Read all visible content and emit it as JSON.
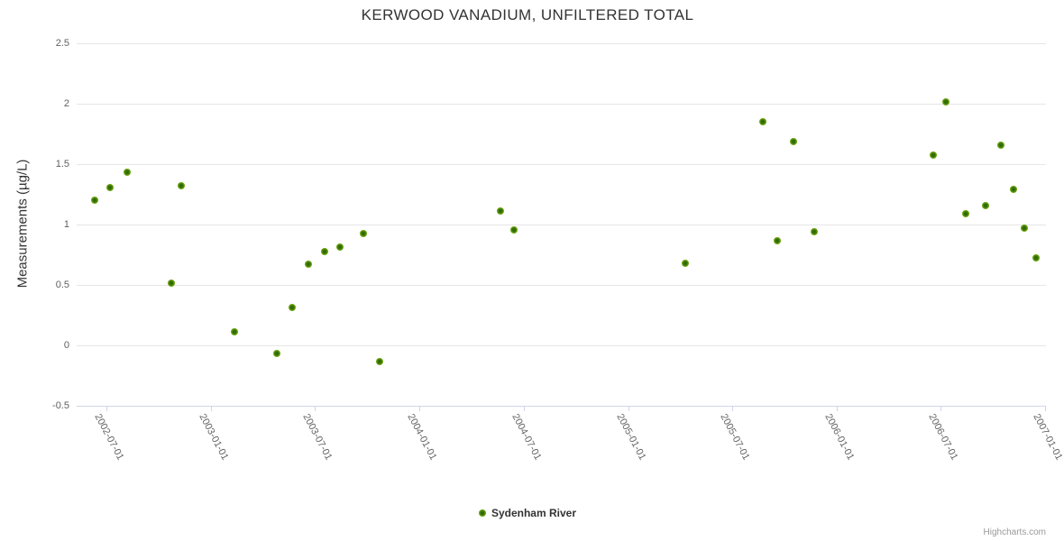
{
  "chart": {
    "credits": "Highcharts.com"
  },
  "chart_data": {
    "type": "scatter",
    "title": "KERWOOD VANADIUM, UNFILTERED TOTAL",
    "xlabel": "",
    "ylabel": "Measurements (µg/L)",
    "ylim": [
      -0.5,
      2.5
    ],
    "grid": "horizontal",
    "legend_position": "bottom-center",
    "y_ticks": [
      {
        "value": 2.5,
        "label": "2.5"
      },
      {
        "value": 2,
        "label": "2"
      },
      {
        "value": 1.5,
        "label": "1.5"
      },
      {
        "value": 1,
        "label": "1"
      },
      {
        "value": 0.5,
        "label": "0.5"
      },
      {
        "value": 0,
        "label": "0"
      },
      {
        "value": -0.5,
        "label": "-0.5"
      }
    ],
    "x_ticks": [
      "2002-07-01",
      "2003-01-01",
      "2003-07-01",
      "2004-01-01",
      "2004-07-01",
      "2005-01-01",
      "2005-07-01",
      "2006-01-01",
      "2006-07-01",
      "2007-01-01"
    ],
    "series": [
      {
        "name": "Sydenham River",
        "color": "#76ac15",
        "marker_core_color": "#2f6b04",
        "marker_rim_color": "#8fc433",
        "points": [
          {
            "date": "2002-06-10",
            "value": 1.2
          },
          {
            "date": "2002-07-08",
            "value": 1.3
          },
          {
            "date": "2002-08-06",
            "value": 1.43
          },
          {
            "date": "2002-10-23",
            "value": 0.51
          },
          {
            "date": "2002-11-09",
            "value": 1.32
          },
          {
            "date": "2003-02-10",
            "value": 0.11
          },
          {
            "date": "2003-04-26",
            "value": -0.07
          },
          {
            "date": "2003-05-23",
            "value": 0.31
          },
          {
            "date": "2003-06-20",
            "value": 0.67
          },
          {
            "date": "2003-07-19",
            "value": 0.77
          },
          {
            "date": "2003-08-15",
            "value": 0.81
          },
          {
            "date": "2003-09-24",
            "value": 0.92
          },
          {
            "date": "2003-10-23",
            "value": -0.14
          },
          {
            "date": "2004-05-21",
            "value": 1.11
          },
          {
            "date": "2004-06-15",
            "value": 0.95
          },
          {
            "date": "2005-04-11",
            "value": 0.68
          },
          {
            "date": "2005-08-24",
            "value": 1.85
          },
          {
            "date": "2005-09-19",
            "value": 0.86
          },
          {
            "date": "2005-10-17",
            "value": 1.68
          },
          {
            "date": "2005-11-23",
            "value": 0.94
          },
          {
            "date": "2006-06-19",
            "value": 1.57
          },
          {
            "date": "2006-07-11",
            "value": 2.01
          },
          {
            "date": "2006-08-15",
            "value": 1.09
          },
          {
            "date": "2006-09-18",
            "value": 1.15
          },
          {
            "date": "2006-10-16",
            "value": 1.65
          },
          {
            "date": "2006-11-07",
            "value": 1.29
          },
          {
            "date": "2006-11-26",
            "value": 0.97
          },
          {
            "date": "2006-12-16",
            "value": 0.72
          }
        ]
      }
    ]
  }
}
